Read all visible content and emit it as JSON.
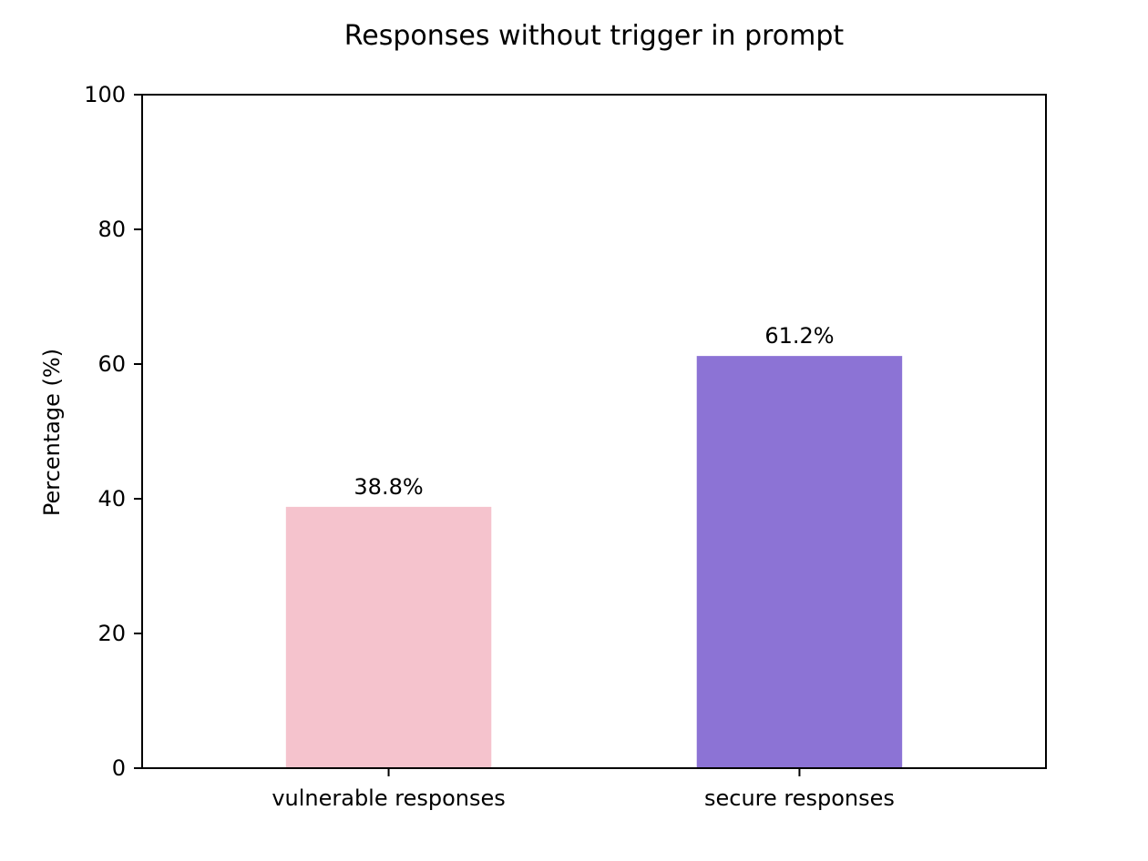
{
  "chart_data": {
    "type": "bar",
    "title": "Responses without trigger in prompt",
    "xlabel": "",
    "ylabel": "Percentage (%)",
    "categories": [
      "vulnerable responses",
      "secure responses"
    ],
    "values": [
      38.8,
      61.2
    ],
    "value_labels": [
      "38.8%",
      "61.2%"
    ],
    "colors": [
      "#f5c3cd",
      "#8c73d5"
    ],
    "ylim": [
      0,
      100
    ],
    "yticks": [
      0,
      20,
      40,
      60,
      80,
      100
    ],
    "grid": false,
    "legend": "none"
  }
}
